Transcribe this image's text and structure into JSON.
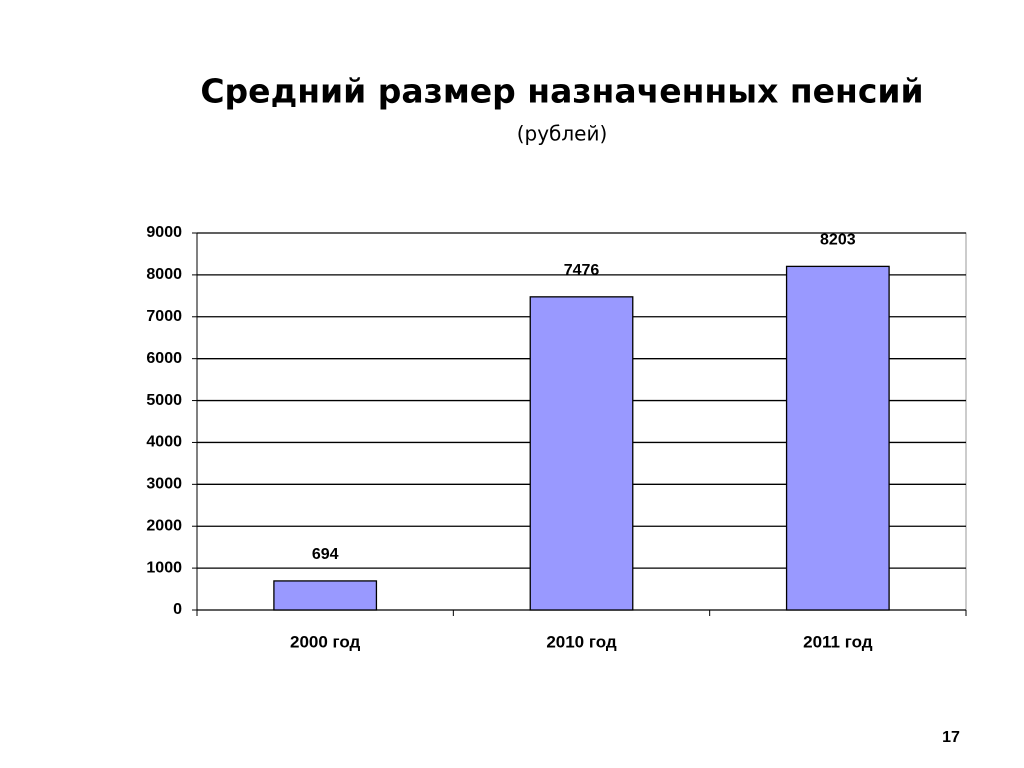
{
  "chart_data": {
    "type": "bar",
    "title": "Средний размер назначенных пенсий",
    "subtitle": "(рублей)",
    "categories": [
      "2000 год",
      "2010 год",
      "2011 год"
    ],
    "values": [
      694,
      7476,
      8203
    ],
    "color": "#9999ff",
    "ylim": [
      0,
      9000
    ],
    "yticks": [
      0,
      1000,
      2000,
      3000,
      4000,
      5000,
      6000,
      7000,
      8000,
      9000
    ],
    "grid": true
  },
  "slide_number": "17"
}
